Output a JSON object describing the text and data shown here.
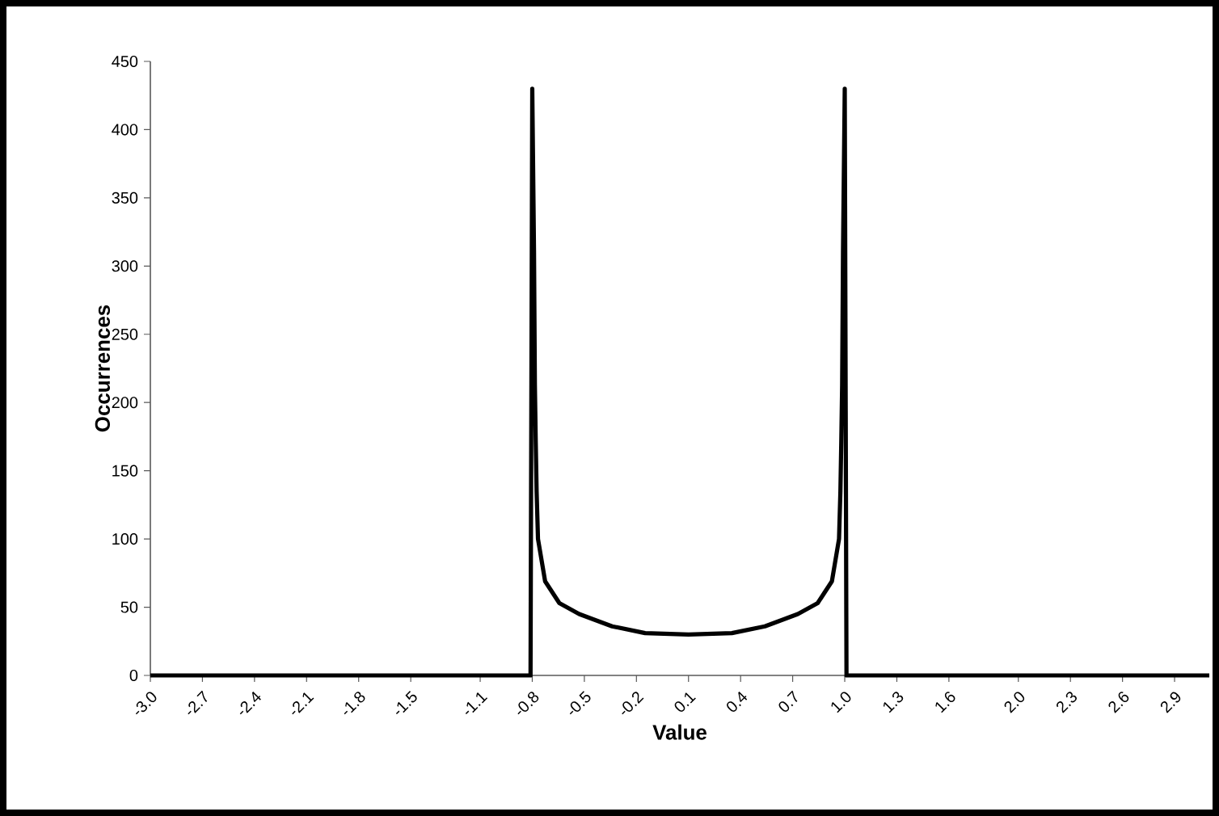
{
  "chart_data": {
    "type": "line",
    "xlabel": "Value",
    "ylabel": "Occurrences",
    "x": [
      -3.0,
      -0.81,
      -0.8,
      -0.79,
      -0.785,
      -0.78,
      -0.775,
      -0.767,
      -0.726,
      -0.644,
      -0.53,
      -0.34,
      -0.15,
      0.1,
      0.35,
      0.54,
      0.73,
      0.844,
      0.926,
      0.967,
      0.975,
      0.98,
      0.985,
      0.99,
      1.0,
      1.01,
      3.1
    ],
    "values": [
      0,
      0,
      430,
      311,
      213,
      171,
      135,
      100,
      69,
      53,
      45,
      36,
      31,
      30,
      31,
      36,
      45,
      53,
      69,
      100,
      135,
      171,
      213,
      311,
      430,
      0,
      0
    ],
    "color": "#000000",
    "xlim": [
      -3.0,
      3.1
    ],
    "xticks": [
      {
        "value": -3,
        "label": "-3.0"
      },
      -2.7,
      -2.4,
      -2.1,
      -1.8,
      -1.5,
      -1.1,
      -0.8,
      -0.5,
      -0.2,
      0.1,
      0.4,
      0.7,
      {
        "value": 1,
        "label": "1.0"
      },
      1.3,
      1.6,
      {
        "value": 2,
        "label": "2.0"
      },
      2.3,
      2.6,
      2.9
    ],
    "ylim": [
      0,
      450
    ],
    "yticks": [
      0,
      50,
      100,
      150,
      200,
      250,
      300,
      350,
      400,
      450
    ],
    "marker": "none",
    "line_style": "solid"
  }
}
